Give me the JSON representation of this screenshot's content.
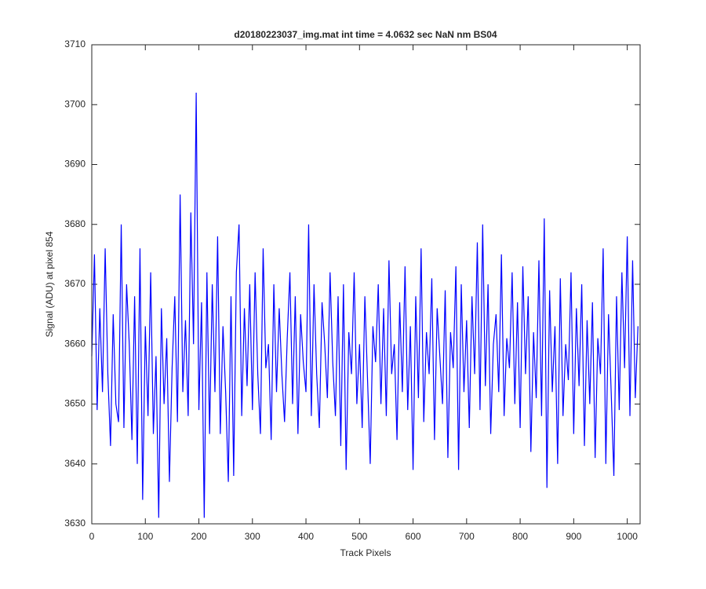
{
  "chart_data": {
    "type": "line",
    "title": "d20180223037_img.mat int time = 4.0632 sec  NaN nm BS04",
    "xlabel": "Track Pixels",
    "ylabel": "Signal (ADU) at pixel 854",
    "color": "#0000ff",
    "xlim": [
      0,
      1024
    ],
    "ylim": [
      3630,
      3710
    ],
    "xticks": [
      0,
      100,
      200,
      300,
      400,
      500,
      600,
      700,
      800,
      900,
      1000
    ],
    "yticks": [
      3630,
      3640,
      3650,
      3660,
      3670,
      3680,
      3690,
      3700,
      3710
    ],
    "grid": false,
    "x": [
      0,
      5,
      10,
      15,
      20,
      25,
      30,
      35,
      40,
      45,
      50,
      55,
      60,
      65,
      70,
      75,
      80,
      85,
      90,
      95,
      100,
      105,
      110,
      115,
      120,
      125,
      130,
      135,
      140,
      145,
      150,
      155,
      160,
      165,
      170,
      175,
      180,
      185,
      190,
      195,
      200,
      205,
      210,
      215,
      220,
      225,
      230,
      235,
      240,
      245,
      250,
      255,
      260,
      265,
      270,
      275,
      280,
      285,
      290,
      295,
      300,
      305,
      310,
      315,
      320,
      325,
      330,
      335,
      340,
      345,
      350,
      355,
      360,
      365,
      370,
      375,
      380,
      385,
      390,
      395,
      400,
      405,
      410,
      415,
      420,
      425,
      430,
      435,
      440,
      445,
      450,
      455,
      460,
      465,
      470,
      475,
      480,
      485,
      490,
      495,
      500,
      505,
      510,
      515,
      520,
      525,
      530,
      535,
      540,
      545,
      550,
      555,
      560,
      565,
      570,
      575,
      580,
      585,
      590,
      595,
      600,
      605,
      610,
      615,
      620,
      625,
      630,
      635,
      640,
      645,
      650,
      655,
      660,
      665,
      670,
      675,
      680,
      685,
      690,
      695,
      700,
      705,
      710,
      715,
      720,
      725,
      730,
      735,
      740,
      745,
      750,
      755,
      760,
      765,
      770,
      775,
      780,
      785,
      790,
      795,
      800,
      805,
      810,
      815,
      820,
      825,
      830,
      835,
      840,
      845,
      850,
      855,
      860,
      865,
      870,
      875,
      880,
      885,
      890,
      895,
      900,
      905,
      910,
      915,
      920,
      925,
      930,
      935,
      940,
      945,
      950,
      955,
      960,
      965,
      970,
      975,
      980,
      985,
      990,
      995,
      1000,
      1005,
      1010,
      1015,
      1020
    ],
    "values": [
      3658,
      3675,
      3649,
      3666,
      3652,
      3676,
      3655,
      3643,
      3665,
      3650,
      3647,
      3680,
      3646,
      3670,
      3660,
      3644,
      3668,
      3640,
      3676,
      3634,
      3663,
      3648,
      3672,
      3645,
      3658,
      3631,
      3666,
      3650,
      3661,
      3637,
      3656,
      3668,
      3647,
      3685,
      3652,
      3664,
      3648,
      3682,
      3660,
      3702,
      3649,
      3667,
      3631,
      3672,
      3645,
      3670,
      3652,
      3678,
      3645,
      3663,
      3652,
      3637,
      3668,
      3638,
      3672,
      3680,
      3648,
      3666,
      3653,
      3670,
      3649,
      3672,
      3655,
      3645,
      3676,
      3656,
      3660,
      3644,
      3670,
      3652,
      3666,
      3655,
      3647,
      3661,
      3672,
      3650,
      3668,
      3645,
      3665,
      3657,
      3652,
      3680,
      3648,
      3670,
      3655,
      3646,
      3667,
      3660,
      3651,
      3672,
      3657,
      3648,
      3668,
      3643,
      3670,
      3639,
      3662,
      3655,
      3672,
      3650,
      3660,
      3646,
      3668,
      3654,
      3640,
      3663,
      3657,
      3670,
      3650,
      3666,
      3648,
      3674,
      3655,
      3660,
      3644,
      3667,
      3652,
      3673,
      3649,
      3663,
      3639,
      3668,
      3651,
      3676,
      3647,
      3662,
      3655,
      3671,
      3644,
      3666,
      3658,
      3650,
      3669,
      3641,
      3662,
      3656,
      3673,
      3639,
      3670,
      3652,
      3664,
      3646,
      3668,
      3655,
      3677,
      3649,
      3680,
      3653,
      3670,
      3645,
      3660,
      3665,
      3652,
      3675,
      3648,
      3661,
      3656,
      3672,
      3650,
      3667,
      3646,
      3673,
      3655,
      3668,
      3642,
      3662,
      3651,
      3674,
      3648,
      3681,
      3636,
      3669,
      3652,
      3663,
      3640,
      3671,
      3648,
      3660,
      3654,
      3672,
      3645,
      3666,
      3653,
      3670,
      3643,
      3664,
      3650,
      3667,
      3641,
      3661,
      3655,
      3676,
      3640,
      3665,
      3652,
      3638,
      3668,
      3649,
      3672,
      3656,
      3678,
      3648,
      3674,
      3651,
      3663
    ]
  }
}
